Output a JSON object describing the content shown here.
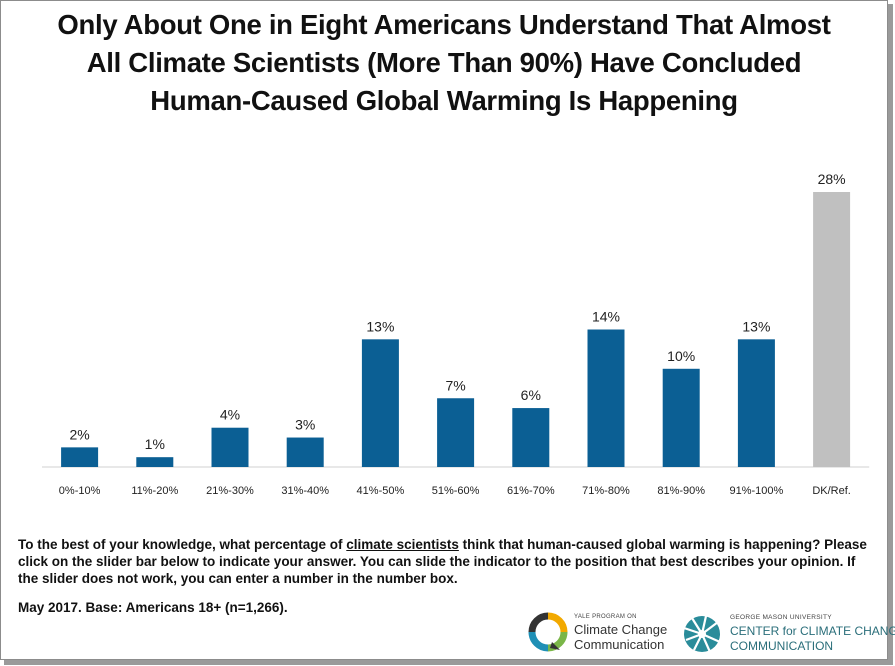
{
  "title_lines": [
    "Only About One in Eight Americans Understand That Almost",
    "All Climate Scientists (More Than 90%) Have Concluded",
    "Human-Caused Global Warming Is Happening"
  ],
  "question": {
    "before": "To the best of your knowledge, what percentage of ",
    "underlined": "climate scientists",
    "after": " think that human-caused global warming is happening? Please click on the slider bar below to indicate your answer. You can slide the indicator to the position that best describes your opinion. If the slider does not work, you can enter a number in the number box."
  },
  "base_note": "May 2017. Base: Americans 18+ (n=1,266).",
  "logos": {
    "yale": {
      "top": "YALE PROGRAM ON",
      "line1": "Climate Change",
      "line2": "Communication"
    },
    "gmu": {
      "top": "GEORGE MASON UNIVERSITY",
      "line1": "CENTER for CLIMATE CHANGE",
      "line2": "COMMUNICATION"
    }
  },
  "colors": {
    "bar": "#0b5f94",
    "dk_bar": "#c0c0c0",
    "yale_ring": [
      "#f2a900",
      "#7ab648",
      "#1f8fb5",
      "#333333"
    ],
    "gmu_teal": "#2a8c9a"
  },
  "chart_data": {
    "type": "bar",
    "categories": [
      "0%-10%",
      "11%-20%",
      "21%-30%",
      "31%-40%",
      "41%-50%",
      "51%-60%",
      "61%-70%",
      "71%-80%",
      "81%-90%",
      "91%-100%",
      "DK/Ref."
    ],
    "values": [
      2,
      1,
      4,
      3,
      13,
      7,
      6,
      14,
      10,
      13,
      28
    ],
    "value_labels": [
      "2%",
      "1%",
      "4%",
      "3%",
      "13%",
      "7%",
      "6%",
      "14%",
      "10%",
      "13%",
      "28%"
    ],
    "highlight_category": "DK/Ref.",
    "ylim": [
      0,
      28
    ],
    "grid": false,
    "legend": "none"
  }
}
